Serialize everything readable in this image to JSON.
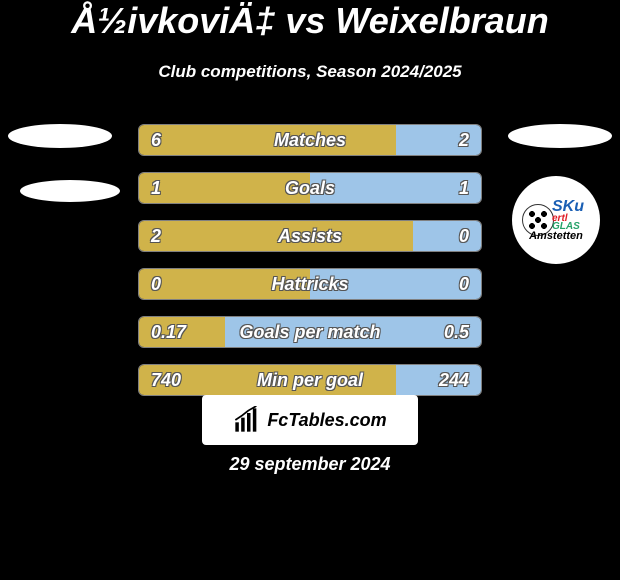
{
  "title": "Å½ivkoviÄ‡ vs Weixelbraun",
  "subtitle": "Club competitions, Season 2024/2025",
  "colors": {
    "background": "#000000",
    "text": "#ffffff",
    "left_bar": "#d0b34a",
    "right_bar": "#9ec5e8",
    "bar_border": "rgba(255,255,255,0.5)"
  },
  "badge": {
    "sku": "SKu",
    "ertl": "ertl",
    "glas": "GLAS",
    "town": "Amstetten"
  },
  "bars": [
    {
      "label": "Matches",
      "left": "6",
      "right": "2",
      "leftPct": 75,
      "rightPct": 25
    },
    {
      "label": "Goals",
      "left": "1",
      "right": "1",
      "leftPct": 50,
      "rightPct": 50
    },
    {
      "label": "Assists",
      "left": "2",
      "right": "0",
      "leftPct": 80,
      "rightPct": 20
    },
    {
      "label": "Hattricks",
      "left": "0",
      "right": "0",
      "leftPct": 50,
      "rightPct": 50
    },
    {
      "label": "Goals per match",
      "left": "0.17",
      "right": "0.5",
      "leftPct": 25,
      "rightPct": 75
    },
    {
      "label": "Min per goal",
      "left": "740",
      "right": "244",
      "leftPct": 75,
      "rightPct": 25
    }
  ],
  "footer_brand": "FcTables.com",
  "date": "29 september 2024",
  "typography": {
    "title_fontsize": 36,
    "subtitle_fontsize": 17,
    "bar_label_fontsize": 18,
    "date_fontsize": 18
  }
}
